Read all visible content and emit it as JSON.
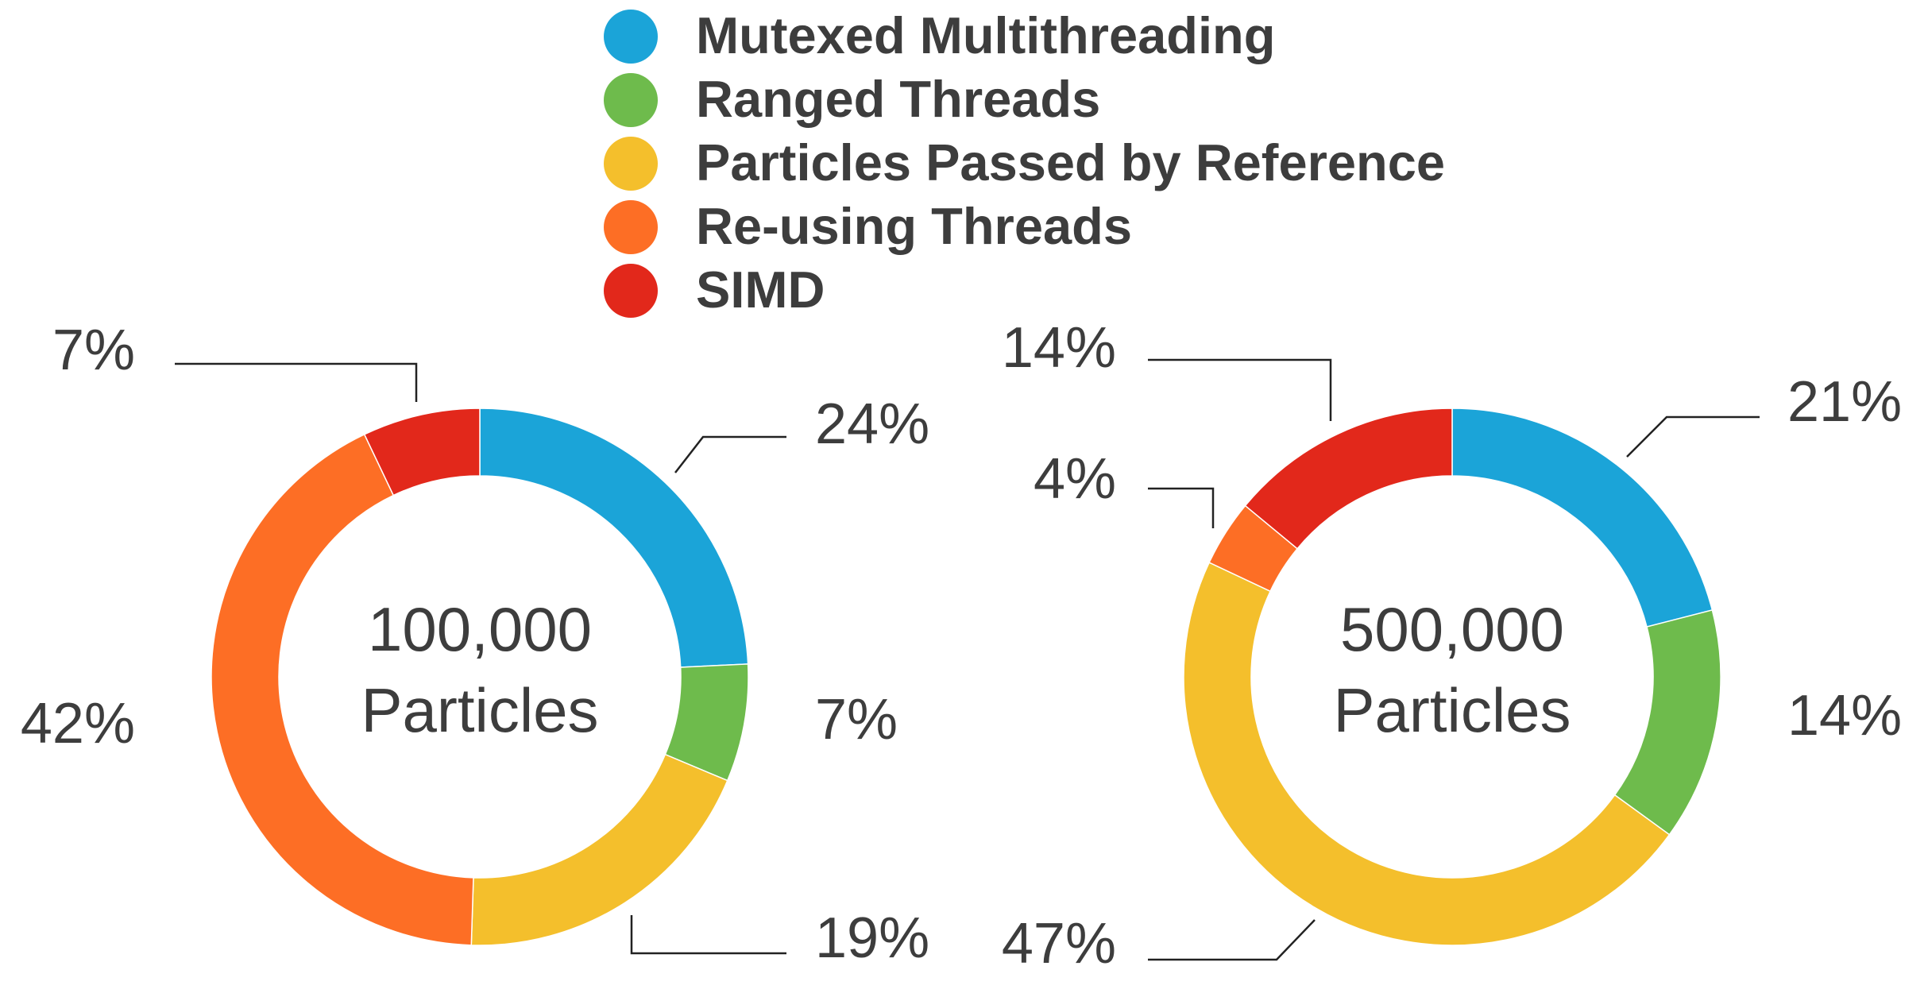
{
  "legend": {
    "items": [
      {
        "label": "Mutexed Multithreading",
        "color": "#1ba4d8"
      },
      {
        "label": "Ranged Threads",
        "color": "#6ebb4c"
      },
      {
        "label": "Particles Passed by Reference",
        "color": "#f4bf2c"
      },
      {
        "label": "Re-using Threads",
        "color": "#fd6e25"
      },
      {
        "label": "SIMD",
        "color": "#e2281b"
      }
    ]
  },
  "chart_data": [
    {
      "type": "pie",
      "donut": true,
      "center_label": [
        "100,000",
        "Particles"
      ],
      "categories": [
        "Mutexed Multithreading",
        "Ranged Threads",
        "Particles Passed by Reference",
        "Re-using Threads",
        "SIMD"
      ],
      "values": [
        24,
        7,
        19,
        42,
        7
      ],
      "labels": [
        "24%",
        "7%",
        "19%",
        "42%",
        "7%"
      ],
      "colors": [
        "#1ba4d8",
        "#6ebb4c",
        "#f4bf2c",
        "#fd6e25",
        "#e2281b"
      ]
    },
    {
      "type": "pie",
      "donut": true,
      "center_label": [
        "500,000",
        "Particles"
      ],
      "categories": [
        "Mutexed Multithreading",
        "Ranged Threads",
        "Particles Passed by Reference",
        "Re-using Threads",
        "SIMD"
      ],
      "values": [
        21,
        14,
        47,
        4,
        14
      ],
      "labels": [
        "21%",
        "14%",
        "47%",
        "4%",
        "14%"
      ],
      "colors": [
        "#1ba4d8",
        "#6ebb4c",
        "#f4bf2c",
        "#fd6e25",
        "#e2281b"
      ]
    }
  ]
}
